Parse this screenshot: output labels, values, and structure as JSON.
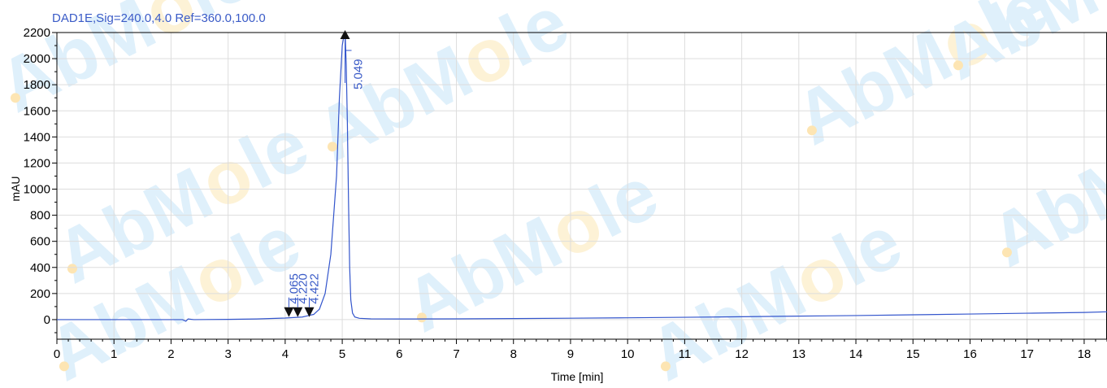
{
  "chart_data": {
    "type": "line",
    "title": "DAD1E,Sig=240.0,4.0  Ref=360.0,100.0",
    "xlabel": "Time [min]",
    "ylabel": "mAU",
    "xlim": [
      0,
      18.4
    ],
    "ylim": [
      -150,
      2200
    ],
    "x_ticks": [
      0,
      1,
      2,
      3,
      4,
      5,
      6,
      7,
      8,
      9,
      10,
      11,
      12,
      13,
      14,
      15,
      16,
      17,
      18
    ],
    "y_ticks": [
      0,
      200,
      400,
      600,
      800,
      1000,
      1200,
      1400,
      1600,
      1800,
      2000,
      2200
    ],
    "grid": true,
    "series": [
      {
        "color": "#3355cc",
        "x": [
          0,
          1,
          2,
          2.2,
          2.26,
          2.3,
          2.4,
          3,
          3.5,
          4,
          4.3,
          4.5,
          4.6,
          4.7,
          4.8,
          4.9,
          4.95,
          5.0,
          5.04,
          5.05,
          5.07,
          5.09,
          5.11,
          5.13,
          5.15,
          5.18,
          5.22,
          5.3,
          5.5,
          6,
          7,
          8,
          9,
          10,
          11,
          12,
          13,
          14,
          15,
          16,
          17,
          18,
          18.4
        ],
        "y": [
          0,
          0,
          0,
          0,
          -12,
          5,
          0,
          2,
          5,
          12,
          20,
          40,
          80,
          200,
          500,
          1100,
          1700,
          2100,
          2200,
          2200,
          1950,
          1500,
          900,
          400,
          150,
          50,
          20,
          10,
          6,
          5,
          6,
          8,
          11,
          14,
          18,
          22,
          27,
          31,
          37,
          43,
          49,
          55,
          60
        ]
      }
    ],
    "peaks": [
      {
        "time": 4.065,
        "label": "4.065",
        "marker_y": 45
      },
      {
        "time": 4.22,
        "label": "4.220",
        "marker_y": 45
      },
      {
        "time": 4.422,
        "label": "4.422",
        "marker_y": 45
      },
      {
        "time": 5.049,
        "label": "5.049",
        "marker_y": 2200
      }
    ]
  },
  "watermark": {
    "text": "AbMole",
    "colors": {
      "letters": "#dff0fb",
      "o": "#fdf2d6",
      "dot": "#fde5b3"
    }
  },
  "colors": {
    "axis": "#000000",
    "grid": "#dddddd",
    "trace": "#3355cc",
    "label": "#3a5bc7"
  }
}
